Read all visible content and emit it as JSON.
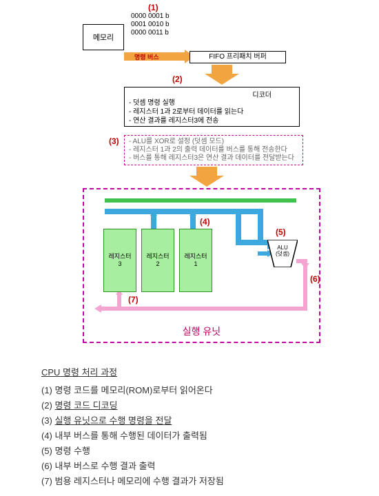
{
  "colors": {
    "accent_red": "#c00000",
    "arrow_orange": "#f2a440",
    "dash_magenta": "#c000a0",
    "bus_green": "#41c24f",
    "bus_blue": "#3da8dd",
    "bus_pink": "#f4a4d0",
    "register_fill": "#a8eea0",
    "register_border": "#2a9020",
    "background": "#ffffff",
    "text": "#333333"
  },
  "steps": {
    "s1": "(1)",
    "s2": "(2)",
    "s3": "(3)",
    "s4": "(4)",
    "s5": "(5)",
    "s6": "(6)",
    "s7": "(7)"
  },
  "memory_label": "메모리",
  "binary": [
    "0000 0001 b",
    "0001 0010 b",
    "0000 0011 b"
  ],
  "inst_bus": "명령 버스",
  "fifo": "FIFO 프리패치 버퍼",
  "decoder": {
    "title": "디코더",
    "lines": [
      "- 덧셈 명령 실행",
      "- 레지스터 1과 2로부터 데이터를 읽는다",
      "- 연산 결과를 레지스터3에 전송"
    ]
  },
  "step3": [
    "- ALU를 XOR로 설정 (덧셈 모드)",
    "- 레지스터 1과 2의 출력 데이터를 버스를 통해 전송한다",
    "- 버스를 통해 레지스터3은 연산 결과 데이터를 전달받는다"
  ],
  "exec_unit": "실행 유닛",
  "registers": {
    "r1": "레지스터\n1",
    "r2": "레지스터\n2",
    "r3": "레지스터\n3"
  },
  "alu": "ALU\n(덧셈)",
  "explain": {
    "title": "CPU 명령 처리 과정",
    "rows": [
      {
        "n": "(1)",
        "t": "명령 코드를 메모리(ROM)로부터 읽어온다",
        "u": false
      },
      {
        "n": "(2)",
        "t": "명령 코드 디코딩",
        "u": true
      },
      {
        "n": "(3)",
        "t": "실행 유닛으로 수행 명령을 전달",
        "u": true
      },
      {
        "n": "(4)",
        "t": "내부 버스를 통해 수행된 데이터가 출력됨",
        "u": false
      },
      {
        "n": "(5)",
        "t": "명령 수행",
        "u": false
      },
      {
        "n": "(6)",
        "t": "내부 버스로 수행 결과 출력",
        "u": false
      },
      {
        "n": "(7)",
        "t": "범용 레지스터나 메모리에 수행 결과가 저장됨",
        "u": false
      }
    ]
  }
}
